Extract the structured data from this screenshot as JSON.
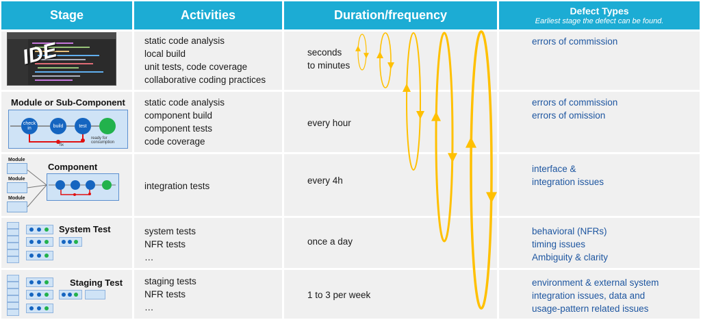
{
  "header": {
    "stage": "Stage",
    "activities": "Activities",
    "duration": "Duration/frequency",
    "defect_types": "Defect Types",
    "defect_subtitle": "Earliest stage the defect can be found."
  },
  "rows": [
    {
      "stage_label": "IDE",
      "activities": [
        "static code analysis",
        "local build",
        "unit tests, code coverage",
        "collaborative coding practices"
      ],
      "duration": [
        "seconds",
        "to minutes"
      ],
      "defects": [
        "errors of commission"
      ]
    },
    {
      "stage_label": "Module or Sub-Component",
      "activities": [
        "static code analysis",
        "component build",
        "component tests",
        "code coverage"
      ],
      "duration": [
        "every hour"
      ],
      "defects": [
        "errors of commission",
        "errors of omission"
      ]
    },
    {
      "stage_label": "Component",
      "activities": [
        "integration tests"
      ],
      "duration": [
        "every 4h"
      ],
      "defects": [
        "interface &",
        "integration issues"
      ]
    },
    {
      "stage_label": "System Test",
      "activities": [
        "system tests",
        "NFR tests",
        "…"
      ],
      "duration": [
        "once a day"
      ],
      "defects": [
        "behavioral (NFRs)",
        "timing issues",
        "Ambiguity & clarity"
      ]
    },
    {
      "stage_label": "Staging Test",
      "activities": [
        "staging tests",
        "NFR tests",
        "…"
      ],
      "duration": [
        "1 to 3 per week"
      ],
      "defects": [
        "environment & external system",
        "integration issues, data and",
        "usage-pattern related issues"
      ]
    }
  ],
  "pipeline": {
    "nodes": [
      "check in",
      "build",
      "test"
    ],
    "fix_label": "fix",
    "ready_label": "ready for consumption"
  },
  "component_modules": [
    "Module",
    "Module",
    "Module"
  ],
  "colors": {
    "header": "#1cacd4",
    "cell": "#f0f0f0",
    "loop": "#ffc000",
    "defect_text": "#1e56a0",
    "node": "#1565c0",
    "node_done": "#22b24c",
    "fix": "#e01010"
  }
}
